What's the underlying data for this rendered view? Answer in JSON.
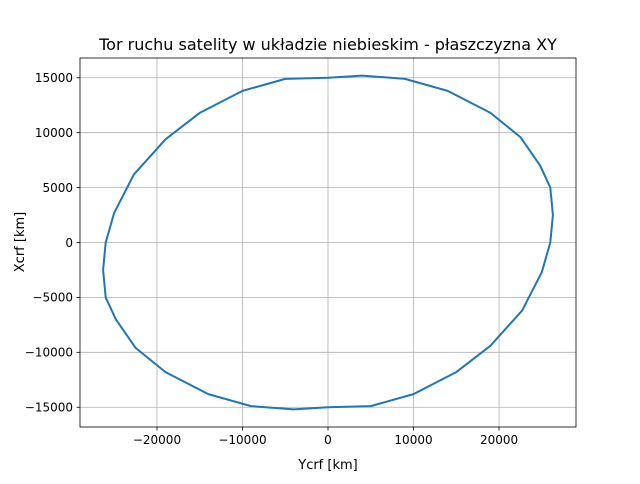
{
  "chart_data": {
    "type": "line",
    "title": "Tor ruchu satelity w układzie niebieskim - płaszczyzna XY",
    "xlabel": "Ycrf [km]",
    "ylabel": "Xcrf [km]",
    "xlim": [
      -29000,
      29000
    ],
    "ylim": [
      -16800,
      16800
    ],
    "xticks": [
      -20000,
      -10000,
      0,
      10000,
      20000
    ],
    "xtick_labels": [
      "−20000",
      "−10000",
      "0",
      "10000",
      "20000"
    ],
    "yticks": [
      -15000,
      -10000,
      -5000,
      0,
      5000,
      10000,
      15000
    ],
    "ytick_labels": [
      "−15000",
      "−10000",
      "−5000",
      "0",
      "5000",
      "10000",
      "15000"
    ],
    "grid": true,
    "legend": "none",
    "series": [
      {
        "color": "#1f77b4",
        "x": [
          0,
          4000,
          9000,
          14000,
          19000,
          22500,
          24800,
          26000,
          26300,
          26000,
          25000,
          22700,
          19000,
          15000,
          10000,
          5000,
          0,
          -4000,
          -9000,
          -14000,
          -19000,
          -22500,
          -24800,
          -26000,
          -26300,
          -26000,
          -25000,
          -22700,
          -19000,
          -15000,
          -10000,
          -5000,
          0
        ],
        "y": [
          15000,
          15200,
          14900,
          13800,
          11800,
          9600,
          7000,
          5000,
          2500,
          0,
          -2700,
          -6200,
          -9400,
          -11800,
          -13800,
          -14900,
          -15000,
          -15200,
          -14900,
          -13800,
          -11800,
          -9600,
          -7000,
          -5000,
          -2500,
          0,
          2700,
          6200,
          9400,
          11800,
          13800,
          14900,
          15000
        ]
      }
    ]
  }
}
